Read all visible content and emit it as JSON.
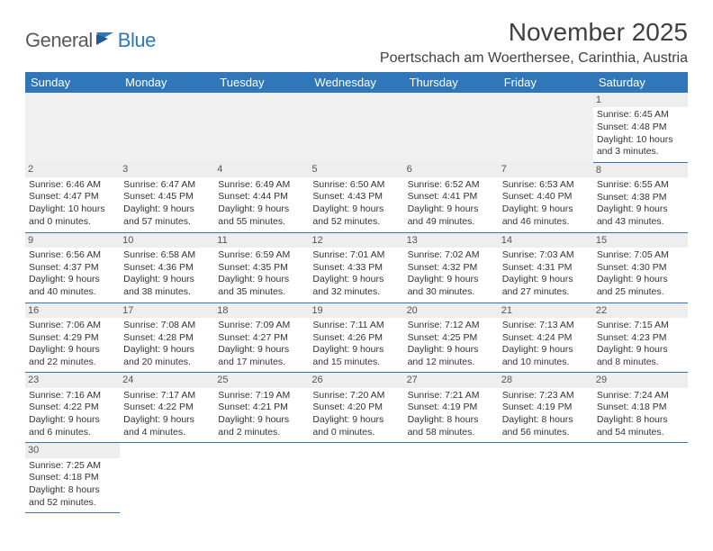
{
  "logo": {
    "text1": "General",
    "text2": "Blue"
  },
  "title": "November 2025",
  "location": "Poertschach am Woerthersee, Carinthia, Austria",
  "colors": {
    "header_bg": "#2f77b8",
    "header_text": "#ffffff",
    "row_divider": "#2f77b8",
    "daynum_bg": "#eeeeee",
    "text": "#333333",
    "title_text": "#404040",
    "logo_gray": "#5a5a5a",
    "logo_blue": "#2f77b8"
  },
  "daysOfWeek": [
    "Sunday",
    "Monday",
    "Tuesday",
    "Wednesday",
    "Thursday",
    "Friday",
    "Saturday"
  ],
  "weeks": [
    [
      null,
      null,
      null,
      null,
      null,
      null,
      {
        "n": "1",
        "sr": "Sunrise: 6:45 AM",
        "ss": "Sunset: 4:48 PM",
        "d1": "Daylight: 10 hours",
        "d2": "and 3 minutes."
      }
    ],
    [
      {
        "n": "2",
        "sr": "Sunrise: 6:46 AM",
        "ss": "Sunset: 4:47 PM",
        "d1": "Daylight: 10 hours",
        "d2": "and 0 minutes."
      },
      {
        "n": "3",
        "sr": "Sunrise: 6:47 AM",
        "ss": "Sunset: 4:45 PM",
        "d1": "Daylight: 9 hours",
        "d2": "and 57 minutes."
      },
      {
        "n": "4",
        "sr": "Sunrise: 6:49 AM",
        "ss": "Sunset: 4:44 PM",
        "d1": "Daylight: 9 hours",
        "d2": "and 55 minutes."
      },
      {
        "n": "5",
        "sr": "Sunrise: 6:50 AM",
        "ss": "Sunset: 4:43 PM",
        "d1": "Daylight: 9 hours",
        "d2": "and 52 minutes."
      },
      {
        "n": "6",
        "sr": "Sunrise: 6:52 AM",
        "ss": "Sunset: 4:41 PM",
        "d1": "Daylight: 9 hours",
        "d2": "and 49 minutes."
      },
      {
        "n": "7",
        "sr": "Sunrise: 6:53 AM",
        "ss": "Sunset: 4:40 PM",
        "d1": "Daylight: 9 hours",
        "d2": "and 46 minutes."
      },
      {
        "n": "8",
        "sr": "Sunrise: 6:55 AM",
        "ss": "Sunset: 4:38 PM",
        "d1": "Daylight: 9 hours",
        "d2": "and 43 minutes."
      }
    ],
    [
      {
        "n": "9",
        "sr": "Sunrise: 6:56 AM",
        "ss": "Sunset: 4:37 PM",
        "d1": "Daylight: 9 hours",
        "d2": "and 40 minutes."
      },
      {
        "n": "10",
        "sr": "Sunrise: 6:58 AM",
        "ss": "Sunset: 4:36 PM",
        "d1": "Daylight: 9 hours",
        "d2": "and 38 minutes."
      },
      {
        "n": "11",
        "sr": "Sunrise: 6:59 AM",
        "ss": "Sunset: 4:35 PM",
        "d1": "Daylight: 9 hours",
        "d2": "and 35 minutes."
      },
      {
        "n": "12",
        "sr": "Sunrise: 7:01 AM",
        "ss": "Sunset: 4:33 PM",
        "d1": "Daylight: 9 hours",
        "d2": "and 32 minutes."
      },
      {
        "n": "13",
        "sr": "Sunrise: 7:02 AM",
        "ss": "Sunset: 4:32 PM",
        "d1": "Daylight: 9 hours",
        "d2": "and 30 minutes."
      },
      {
        "n": "14",
        "sr": "Sunrise: 7:03 AM",
        "ss": "Sunset: 4:31 PM",
        "d1": "Daylight: 9 hours",
        "d2": "and 27 minutes."
      },
      {
        "n": "15",
        "sr": "Sunrise: 7:05 AM",
        "ss": "Sunset: 4:30 PM",
        "d1": "Daylight: 9 hours",
        "d2": "and 25 minutes."
      }
    ],
    [
      {
        "n": "16",
        "sr": "Sunrise: 7:06 AM",
        "ss": "Sunset: 4:29 PM",
        "d1": "Daylight: 9 hours",
        "d2": "and 22 minutes."
      },
      {
        "n": "17",
        "sr": "Sunrise: 7:08 AM",
        "ss": "Sunset: 4:28 PM",
        "d1": "Daylight: 9 hours",
        "d2": "and 20 minutes."
      },
      {
        "n": "18",
        "sr": "Sunrise: 7:09 AM",
        "ss": "Sunset: 4:27 PM",
        "d1": "Daylight: 9 hours",
        "d2": "and 17 minutes."
      },
      {
        "n": "19",
        "sr": "Sunrise: 7:11 AM",
        "ss": "Sunset: 4:26 PM",
        "d1": "Daylight: 9 hours",
        "d2": "and 15 minutes."
      },
      {
        "n": "20",
        "sr": "Sunrise: 7:12 AM",
        "ss": "Sunset: 4:25 PM",
        "d1": "Daylight: 9 hours",
        "d2": "and 12 minutes."
      },
      {
        "n": "21",
        "sr": "Sunrise: 7:13 AM",
        "ss": "Sunset: 4:24 PM",
        "d1": "Daylight: 9 hours",
        "d2": "and 10 minutes."
      },
      {
        "n": "22",
        "sr": "Sunrise: 7:15 AM",
        "ss": "Sunset: 4:23 PM",
        "d1": "Daylight: 9 hours",
        "d2": "and 8 minutes."
      }
    ],
    [
      {
        "n": "23",
        "sr": "Sunrise: 7:16 AM",
        "ss": "Sunset: 4:22 PM",
        "d1": "Daylight: 9 hours",
        "d2": "and 6 minutes."
      },
      {
        "n": "24",
        "sr": "Sunrise: 7:17 AM",
        "ss": "Sunset: 4:22 PM",
        "d1": "Daylight: 9 hours",
        "d2": "and 4 minutes."
      },
      {
        "n": "25",
        "sr": "Sunrise: 7:19 AM",
        "ss": "Sunset: 4:21 PM",
        "d1": "Daylight: 9 hours",
        "d2": "and 2 minutes."
      },
      {
        "n": "26",
        "sr": "Sunrise: 7:20 AM",
        "ss": "Sunset: 4:20 PM",
        "d1": "Daylight: 9 hours",
        "d2": "and 0 minutes."
      },
      {
        "n": "27",
        "sr": "Sunrise: 7:21 AM",
        "ss": "Sunset: 4:19 PM",
        "d1": "Daylight: 8 hours",
        "d2": "and 58 minutes."
      },
      {
        "n": "28",
        "sr": "Sunrise: 7:23 AM",
        "ss": "Sunset: 4:19 PM",
        "d1": "Daylight: 8 hours",
        "d2": "and 56 minutes."
      },
      {
        "n": "29",
        "sr": "Sunrise: 7:24 AM",
        "ss": "Sunset: 4:18 PM",
        "d1": "Daylight: 8 hours",
        "d2": "and 54 minutes."
      }
    ],
    [
      {
        "n": "30",
        "sr": "Sunrise: 7:25 AM",
        "ss": "Sunset: 4:18 PM",
        "d1": "Daylight: 8 hours",
        "d2": "and 52 minutes."
      },
      null,
      null,
      null,
      null,
      null,
      null
    ]
  ]
}
